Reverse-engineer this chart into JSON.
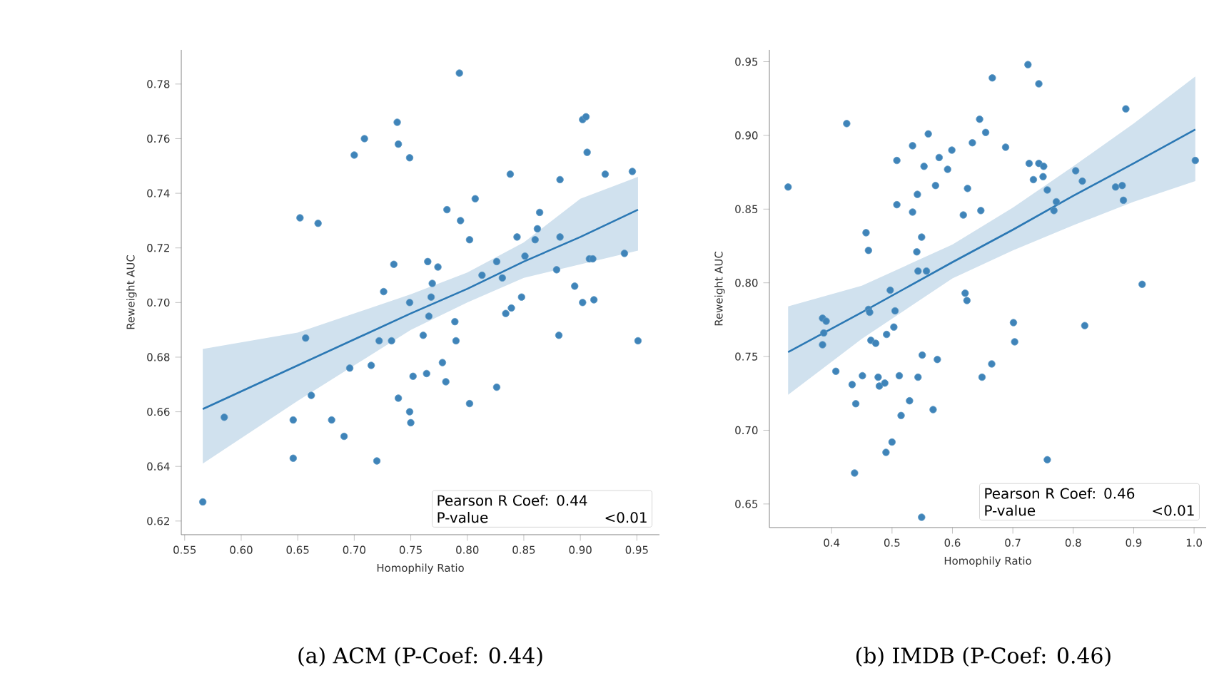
{
  "chart_data": [
    {
      "type": "scatter",
      "title": "(a) ACM (P-Coef: 0.44)",
      "xlabel": "Homophily Ratio",
      "ylabel": "Reweight AUC",
      "xlim": [
        0.547,
        0.97
      ],
      "ylim": [
        0.615,
        0.7925
      ],
      "xticks": [
        0.55,
        {
          "value": 0.6,
          "label": "0.60"
        },
        0.65,
        {
          "value": 0.7,
          "label": "0.70"
        },
        0.75,
        {
          "value": 0.8,
          "label": "0.80"
        },
        0.85,
        {
          "value": 0.9,
          "label": "0.90"
        },
        0.95
      ],
      "yticks": [
        0.62,
        0.64,
        0.66,
        0.68,
        {
          "value": 0.7,
          "label": "0.70"
        },
        0.72,
        0.74,
        0.76,
        0.78
      ],
      "marker": "circle",
      "annotations": [
        "Pearson R Coef: 0.44",
        "P-value",
        "<0.01"
      ],
      "series": [
        {
          "type": "scatter",
          "color": "#3f84b9",
          "x": [
            0.566,
            0.585,
            0.646,
            0.646,
            0.657,
            0.652,
            0.662,
            0.668,
            0.68,
            0.691,
            0.696,
            0.7,
            0.709,
            0.715,
            0.72,
            0.722,
            0.726,
            0.733,
            0.735,
            0.739,
            0.738,
            0.739,
            0.749,
            0.749,
            0.749,
            0.75,
            0.752,
            0.761,
            0.764,
            0.765,
            0.766,
            0.768,
            0.769,
            0.774,
            0.778,
            0.781,
            0.782,
            0.789,
            0.79,
            0.793,
            0.794,
            0.802,
            0.802,
            0.807,
            0.813,
            0.826,
            0.826,
            0.831,
            0.834,
            0.838,
            0.839,
            0.844,
            0.848,
            0.851,
            0.86,
            0.862,
            0.864,
            0.879,
            0.881,
            0.882,
            0.882,
            0.895,
            0.902,
            0.905,
            0.902,
            0.906,
            0.908,
            0.911,
            0.912,
            0.922,
            0.939,
            0.946,
            0.951
          ],
          "values": [
            0.627,
            0.658,
            0.657,
            0.643,
            0.687,
            0.731,
            0.666,
            0.729,
            0.657,
            0.651,
            0.676,
            0.754,
            0.76,
            0.677,
            0.642,
            0.686,
            0.704,
            0.686,
            0.714,
            0.665,
            0.766,
            0.758,
            0.753,
            0.7,
            0.66,
            0.656,
            0.673,
            0.688,
            0.674,
            0.715,
            0.695,
            0.702,
            0.707,
            0.713,
            0.678,
            0.671,
            0.734,
            0.693,
            0.686,
            0.784,
            0.73,
            0.663,
            0.723,
            0.738,
            0.71,
            0.669,
            0.715,
            0.709,
            0.696,
            0.747,
            0.698,
            0.724,
            0.702,
            0.717,
            0.723,
            0.727,
            0.733,
            0.712,
            0.688,
            0.745,
            0.724,
            0.706,
            0.767,
            0.768,
            0.7,
            0.755,
            0.716,
            0.716,
            0.701,
            0.747,
            0.718,
            0.748,
            0.686
          ]
        },
        {
          "type": "line",
          "marker": "none",
          "color": "#2b78b4",
          "x": [
            0.566,
            0.65,
            0.75,
            0.8,
            0.85,
            0.9,
            0.951
          ],
          "values": [
            0.661,
            0.677,
            0.696,
            0.705,
            0.715,
            0.724,
            0.734
          ],
          "lower": [
            0.641,
            0.664,
            0.69,
            0.7,
            0.709,
            0.714,
            0.719
          ],
          "upper": [
            0.683,
            0.689,
            0.703,
            0.711,
            0.722,
            0.738,
            0.746
          ]
        }
      ]
    },
    {
      "type": "scatter",
      "title": "(b) IMDB (P-Coef: 0.46)",
      "xlabel": "Homophily Ratio",
      "ylabel": "Reweight AUC",
      "xlim": [
        0.297,
        1.02
      ],
      "ylim": [
        0.634,
        0.958
      ],
      "xticks": [
        0.4,
        0.5,
        0.6,
        0.7,
        0.8,
        0.9,
        {
          "value": 1.0,
          "label": "1.0"
        }
      ],
      "yticks": [
        0.65,
        {
          "value": 0.7,
          "label": "0.70"
        },
        0.75,
        {
          "value": 0.8,
          "label": "0.80"
        },
        0.85,
        {
          "value": 0.9,
          "label": "0.90"
        },
        0.95
      ],
      "marker": "circle",
      "annotations": [
        "Pearson R Coef: 0.46",
        "P-value",
        "<0.01"
      ],
      "series": [
        {
          "type": "scatter",
          "color": "#3f84b9",
          "x": [
            0.328,
            0.385,
            0.385,
            0.387,
            0.391,
            0.407,
            0.425,
            0.434,
            0.44,
            0.438,
            0.451,
            0.457,
            0.461,
            0.461,
            0.463,
            0.465,
            0.473,
            0.477,
            0.479,
            0.488,
            0.49,
            0.491,
            0.497,
            0.5,
            0.503,
            0.505,
            0.508,
            0.508,
            0.512,
            0.515,
            0.529,
            0.534,
            0.534,
            0.541,
            0.542,
            0.543,
            0.543,
            0.549,
            0.549,
            0.55,
            0.553,
            0.557,
            0.56,
            0.568,
            0.572,
            0.575,
            0.578,
            0.592,
            0.599,
            0.618,
            0.621,
            0.624,
            0.625,
            0.633,
            0.645,
            0.655,
            0.647,
            0.649,
            0.665,
            0.666,
            0.688,
            0.701,
            0.703,
            0.725,
            0.727,
            0.734,
            0.743,
            0.743,
            0.751,
            0.75,
            0.757,
            0.757,
            0.768,
            0.772,
            0.804,
            0.815,
            0.819,
            0.87,
            0.881,
            0.883,
            0.887,
            0.914,
            1.002
          ],
          "values": [
            0.865,
            0.776,
            0.758,
            0.766,
            0.774,
            0.74,
            0.908,
            0.731,
            0.718,
            0.671,
            0.737,
            0.834,
            0.822,
            0.782,
            0.78,
            0.761,
            0.759,
            0.736,
            0.73,
            0.732,
            0.685,
            0.765,
            0.795,
            0.692,
            0.77,
            0.781,
            0.853,
            0.883,
            0.737,
            0.71,
            0.72,
            0.893,
            0.848,
            0.821,
            0.86,
            0.808,
            0.736,
            0.641,
            0.831,
            0.751,
            0.879,
            0.808,
            0.901,
            0.714,
            0.866,
            0.748,
            0.885,
            0.877,
            0.89,
            0.846,
            0.793,
            0.788,
            0.864,
            0.895,
            0.911,
            0.902,
            0.849,
            0.736,
            0.745,
            0.939,
            0.892,
            0.773,
            0.76,
            0.948,
            0.881,
            0.87,
            0.935,
            0.881,
            0.879,
            0.872,
            0.863,
            0.68,
            0.849,
            0.855,
            0.876,
            0.869,
            0.771,
            0.865,
            0.866,
            0.856,
            0.918,
            0.799,
            0.883
          ]
        },
        {
          "type": "line",
          "marker": "none",
          "color": "#2b78b4",
          "x": [
            0.328,
            0.45,
            0.6,
            0.7,
            0.8,
            0.9,
            1.002
          ],
          "values": [
            0.753,
            0.78,
            0.814,
            0.836,
            0.859,
            0.881,
            0.904
          ],
          "lower": [
            0.724,
            0.762,
            0.803,
            0.822,
            0.839,
            0.855,
            0.869
          ],
          "upper": [
            0.784,
            0.798,
            0.826,
            0.851,
            0.879,
            0.908,
            0.94
          ]
        }
      ]
    }
  ]
}
